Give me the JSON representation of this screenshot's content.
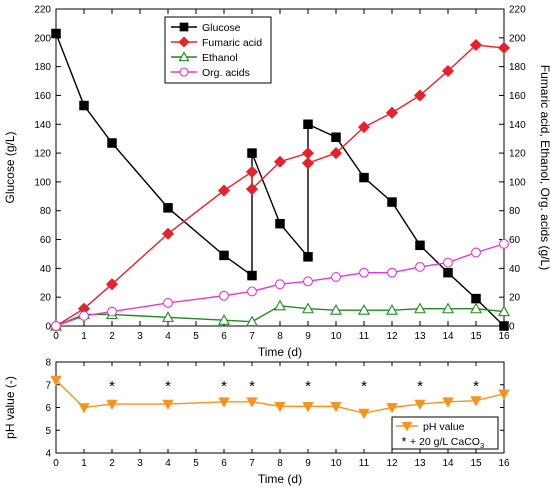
{
  "chart_data": [
    {
      "type": "line",
      "xlabel": "Time (d)",
      "ylabel": "Glucose (g/L)",
      "ylabel_right": "Fumaric acid, Ethanol, Org. acids (g/L)",
      "xlim": [
        0,
        16
      ],
      "ylim": [
        0,
        220
      ],
      "ylim_right": [
        0,
        220
      ],
      "x_ticks": [
        0,
        1,
        2,
        3,
        4,
        5,
        6,
        7,
        8,
        9,
        10,
        11,
        12,
        13,
        14,
        15,
        16
      ],
      "y_ticks": [
        0,
        20,
        40,
        60,
        80,
        100,
        120,
        140,
        160,
        180,
        200,
        220
      ],
      "legend_position": "top-center",
      "series": [
        {
          "name": "Glucose",
          "color": "#000000",
          "marker": "square",
          "filled": true,
          "x": [
            0,
            1,
            2,
            4,
            6,
            7,
            7,
            8,
            9,
            9,
            10,
            11,
            12,
            13,
            14,
            15,
            16
          ],
          "y": [
            203,
            153,
            127,
            82,
            49,
            35,
            120,
            71,
            48,
            140,
            131,
            103,
            86,
            56,
            37,
            19,
            0
          ]
        },
        {
          "name": "Fumaric acid",
          "color": "#e8212c",
          "marker": "diamond",
          "filled": true,
          "x": [
            0,
            1,
            2,
            4,
            6,
            7,
            7,
            8,
            9,
            9,
            10,
            11,
            12,
            13,
            14,
            15,
            16
          ],
          "y": [
            0,
            12,
            29,
            64,
            94,
            107,
            95,
            114,
            120,
            113,
            120,
            138,
            148,
            160,
            177,
            195,
            193
          ]
        },
        {
          "name": "Ethanol",
          "color": "#1f8a1f",
          "marker": "triangle",
          "filled": false,
          "x": [
            0,
            1,
            2,
            4,
            6,
            7,
            8,
            9,
            10,
            11,
            12,
            13,
            14,
            15,
            16
          ],
          "y": [
            0,
            8,
            8,
            6,
            4,
            3,
            14,
            12,
            11,
            11,
            11,
            12,
            12,
            12,
            10
          ]
        },
        {
          "name": "Org. acids",
          "color": "#e03ad6",
          "marker": "circle",
          "filled": false,
          "x": [
            0,
            1,
            2,
            4,
            6,
            7,
            8,
            9,
            10,
            11,
            12,
            13,
            14,
            15,
            16
          ],
          "y": [
            0,
            7,
            10,
            16,
            21,
            24,
            29,
            31,
            34,
            37,
            37,
            41,
            44,
            51,
            57
          ]
        }
      ]
    },
    {
      "type": "line",
      "xlabel": "Time (d)",
      "ylabel": "pH value (-)",
      "xlim": [
        0,
        16
      ],
      "ylim": [
        4,
        8
      ],
      "x_ticks": [
        0,
        1,
        2,
        3,
        4,
        5,
        6,
        7,
        8,
        9,
        10,
        11,
        12,
        13,
        14,
        15,
        16
      ],
      "y_ticks": [
        4,
        5,
        6,
        7,
        8
      ],
      "legend_position": "bottom-right",
      "series": [
        {
          "name": "pH value",
          "color": "#f7941d",
          "marker": "triangle-down",
          "filled": true,
          "x": [
            0,
            1,
            2,
            4,
            6,
            7,
            8,
            9,
            10,
            11,
            12,
            13,
            14,
            15,
            16
          ],
          "y": [
            7.2,
            6.0,
            6.15,
            6.15,
            6.25,
            6.25,
            6.05,
            6.05,
            6.05,
            5.75,
            6.0,
            6.15,
            6.25,
            6.3,
            6.6
          ]
        }
      ],
      "annotations": {
        "marker": "*",
        "label": "+ 20 g/L CaCO",
        "label_subscript": "3",
        "x": [
          2,
          4,
          6,
          7,
          9,
          11,
          13,
          15
        ]
      }
    }
  ]
}
